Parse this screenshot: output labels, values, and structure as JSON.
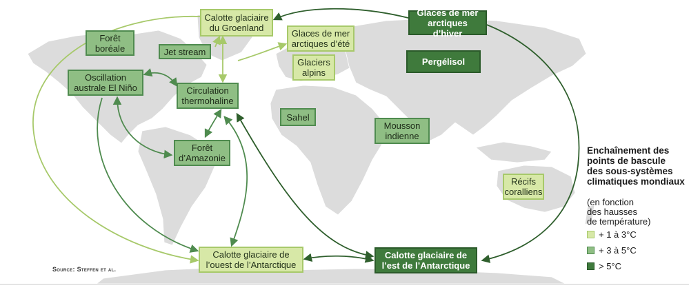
{
  "colors": {
    "level_1": "#d7e8a7",
    "level_2": "#8fbe84",
    "level_3": "#3f7a3c",
    "arrow_light": "#a7c96a",
    "arrow_mid": "#4f8b4f",
    "arrow_dark": "#2f5f2d",
    "land": "#dcdcdc"
  },
  "nodes": {
    "groenland": "Calotte glaciaire\ndu Groenland",
    "glaces_hiver": "Glaces de mer\narctiques d’hiver",
    "foret_boreale": "Forêt\nboréale",
    "jet_stream": "Jet stream",
    "glaces_ete": "Glaces de mer\narctiques d’été",
    "glaciers_alpins": "Glaciers\nalpins",
    "pergelisol": "Pergélisol",
    "el_nino": "Oscillation\naustrale El Niño",
    "circulation": "Circulation\nthermohaline",
    "sahel": "Sahel",
    "mousson": "Mousson\nindienne",
    "amazonie": "Forêt\nd’Amazonie",
    "recifs": "Récifs\ncoralliens",
    "antarctique_ouest": "Calotte glaciaire de\nl’ouest de l’Antarctique",
    "antarctique_est": "Calotte glaciaire de\nl’est de l’Antarctique"
  },
  "legend": {
    "title": "Enchaînement des\npoints de bascule\ndes sous-systèmes\nclimatiques mondiaux",
    "subtitle": "(en fonction\ndes hausses\nde température)",
    "items": [
      {
        "label": "+ 1 à 3°C",
        "level": "level_1"
      },
      {
        "label": "+ 3 à 5°C",
        "level": "level_2"
      },
      {
        "label": "> 5°C",
        "level": "level_3"
      }
    ]
  },
  "source": "Source: Steffen et al."
}
